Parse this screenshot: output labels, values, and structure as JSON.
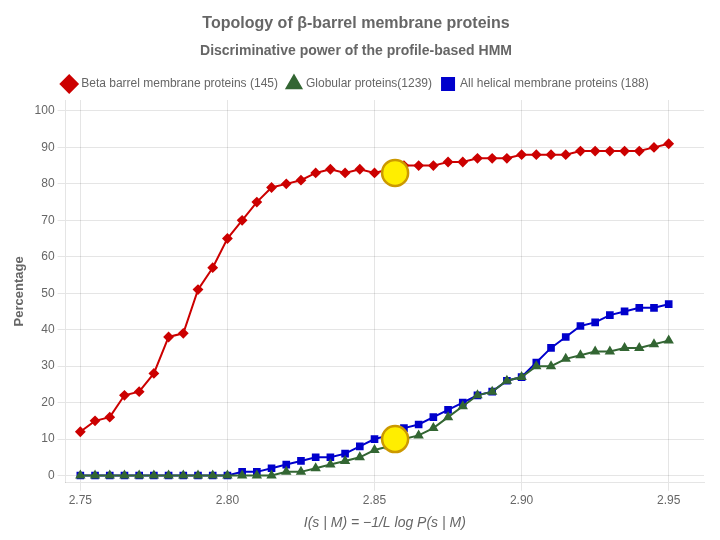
{
  "chart_data": {
    "type": "line",
    "title": "Topology of β-barrel membrane proteins",
    "subtitle": "Discriminative power of the profile-based HMM",
    "x_label": "I(s | M) = −1/L log P(s | M)",
    "y_label": "Percentage",
    "xlim": [
      2.745,
      2.962
    ],
    "ylim": [
      -2,
      103
    ],
    "xticks": [
      2.75,
      {
        "value": 2.8,
        "label": "2.80"
      },
      2.85,
      {
        "value": 2.9,
        "label": "2.90"
      },
      2.95
    ],
    "yticks": [
      0,
      10,
      20,
      30,
      40,
      50,
      60,
      70,
      80,
      90,
      100
    ],
    "grid": true,
    "legend": "top",
    "x": [
      2.75,
      2.755,
      2.76,
      2.765,
      2.77,
      2.775,
      2.78,
      2.785,
      2.79,
      2.795,
      2.8,
      2.805,
      2.81,
      2.815,
      2.82,
      2.825,
      2.83,
      2.835,
      2.84,
      2.845,
      2.85,
      2.855,
      2.86,
      2.865,
      2.87,
      2.875,
      2.88,
      2.885,
      2.89,
      2.895,
      2.9,
      2.905,
      2.91,
      2.915,
      2.92,
      2.925,
      2.93,
      2.935,
      2.94,
      2.945,
      2.95
    ],
    "series": [
      {
        "name": "Beta barrel membrane proteins (145)",
        "color": "#cc0000",
        "marker": "diamond",
        "values": [
          12,
          15,
          16,
          22,
          23,
          28,
          38,
          39,
          51,
          57,
          65,
          70,
          75,
          79,
          80,
          81,
          83,
          84,
          83,
          84,
          83,
          84,
          85,
          85,
          85,
          86,
          86,
          87,
          87,
          87,
          88,
          88,
          88,
          88,
          89,
          89,
          89,
          89,
          89,
          90,
          91
        ]
      },
      {
        "name": "Globular proteins(1239)",
        "color": "#336633",
        "marker": "triangle",
        "values": [
          0,
          0,
          0,
          0,
          0,
          0,
          0,
          0,
          0,
          0,
          0,
          0,
          0,
          0,
          1,
          1,
          2,
          3,
          4,
          5,
          7,
          8,
          10,
          11,
          13,
          16,
          19,
          22,
          23,
          26,
          27,
          30,
          30,
          32,
          33,
          34,
          34,
          35,
          35,
          36,
          37
        ]
      },
      {
        "name": "All helical membrane proteins (188)",
        "color": "#0000cc",
        "marker": "square",
        "values": [
          0,
          0,
          0,
          0,
          0,
          0,
          0,
          0,
          0,
          0,
          0,
          1,
          1,
          2,
          3,
          4,
          5,
          5,
          6,
          8,
          10,
          11,
          13,
          14,
          16,
          18,
          20,
          22,
          23,
          26,
          27,
          31,
          35,
          38,
          41,
          42,
          44,
          45,
          46,
          46,
          47
        ]
      }
    ],
    "highlights": {
      "x": [
        2.857,
        2.857
      ],
      "y": [
        83,
        10
      ],
      "color": "#ffee00",
      "edge_color": "#cc9900"
    }
  }
}
